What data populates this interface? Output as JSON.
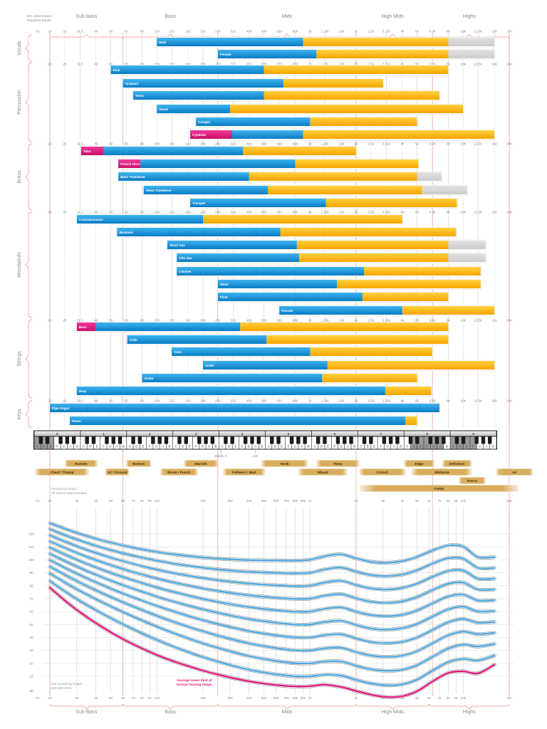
{
  "header": {
    "eq_note": [
      "ISO 1/3rd Octave",
      "Equalizer Bands"
    ],
    "bands": [
      {
        "label": "Sub Bass",
        "from": 20,
        "to": 60
      },
      {
        "label": "Bass",
        "from": 60,
        "to": 250
      },
      {
        "label": "Mids",
        "from": 250,
        "to": 2000
      },
      {
        "label": "High Mids",
        "from": 2000,
        "to": 6000
      },
      {
        "label": "Highs",
        "from": 6000,
        "to": 20000
      }
    ]
  },
  "eq_ticks": {
    "unit": "Hz",
    "labels": [
      "20",
      "25",
      "31.5",
      "40",
      "50",
      "63",
      "80",
      "100",
      "125",
      "160",
      "200",
      "250",
      "315",
      "400",
      "500",
      "630",
      "800",
      "1k",
      "1.25k",
      "1.6k",
      "2k",
      "2.5k",
      "3.15k",
      "4k",
      "5k",
      "6.3k",
      "8k",
      "10k",
      "12.5k",
      "16k",
      "20k"
    ],
    "hz": [
      20,
      25,
      31.5,
      40,
      50,
      63,
      80,
      100,
      125,
      160,
      200,
      250,
      315,
      400,
      500,
      630,
      800,
      1000,
      1250,
      1600,
      2000,
      2500,
      3150,
      4000,
      5000,
      6300,
      8000,
      10000,
      12500,
      16000,
      20000
    ]
  },
  "colors": {
    "fundamental": "#1a9be0",
    "harmonics": "#fbb416",
    "extended": "#d6d6d6",
    "low_extension": "#e0177a",
    "threshold": "#e0177a",
    "contour": "#4aa8e0",
    "band_line": "#f08a8a",
    "descriptor": "#d9ad5c"
  },
  "groups": [
    {
      "label": "Vocals",
      "instruments": [
        {
          "name": "Male",
          "start": 100,
          "split": 900,
          "end": 8000,
          "ext": 16000
        },
        {
          "name": "Female",
          "start": 250,
          "split": 1100,
          "end": 8000,
          "ext": 16000
        }
      ]
    },
    {
      "label": "Percussion",
      "instruments": [
        {
          "name": "Kick",
          "start": 50,
          "split": 500,
          "end": 8000
        },
        {
          "name": "Tympani",
          "start": 60,
          "split": 670,
          "end": 3000
        },
        {
          "name": "Toms",
          "start": 70,
          "split": 500,
          "end": 7000
        },
        {
          "name": "Snare",
          "start": 100,
          "split": 300,
          "end": 10000
        },
        {
          "name": "Congas",
          "start": 180,
          "split": 1000,
          "end": 5000
        },
        {
          "name": "Cymbals",
          "start": 165,
          "mag_end": 310,
          "split": 900,
          "end": 16000
        }
      ]
    },
    {
      "label": "Brass",
      "instruments": [
        {
          "name": "Tuba",
          "start": 32,
          "mag_end": 45,
          "split": 365,
          "end": 2000
        },
        {
          "name": "French Horn",
          "start": 56,
          "mag_end": 78,
          "split": 800,
          "end": 5100
        },
        {
          "name": "Bass Trombone",
          "start": 56,
          "split": 400,
          "end": 5000,
          "ext": 7200
        },
        {
          "name": "Tenor Trombone",
          "start": 82,
          "split": 530,
          "end": 5400,
          "ext": 10600
        },
        {
          "name": "Trumpet",
          "start": 165,
          "split": 1270,
          "end": 9100
        }
      ]
    },
    {
      "label": "Woodwinds",
      "instruments": [
        {
          "name": "Contrabassoon",
          "start": 30,
          "split": 200,
          "end": 4000
        },
        {
          "name": "Bassoon",
          "start": 55,
          "split": 640,
          "end": 9000
        },
        {
          "name": "Tenor Sax",
          "start": 117,
          "split": 820,
          "end": 8000,
          "ext": 14000
        },
        {
          "name": "Alto Sax",
          "start": 135,
          "split": 850,
          "end": 8000,
          "ext": 14000
        },
        {
          "name": "Clarinet",
          "start": 135,
          "split": 2250,
          "end": 13000
        },
        {
          "name": "Oboe",
          "start": 250,
          "split": 1500,
          "end": 13000
        },
        {
          "name": "Flute",
          "start": 250,
          "split": 2200,
          "end": 8000
        },
        {
          "name": "Piccolo",
          "start": 630,
          "split": 4000,
          "end": 16000
        }
      ]
    },
    {
      "label": "Strings",
      "instruments": [
        {
          "name": "Bass",
          "start": 30,
          "mag_end": 40,
          "split": 350,
          "end": 8000
        },
        {
          "name": "Cello",
          "start": 64,
          "split": 520,
          "end": 8000
        },
        {
          "name": "Viola",
          "start": 125,
          "split": 1000,
          "end": 6300
        },
        {
          "name": "Violin",
          "start": 200,
          "split": 1300,
          "end": 16000
        },
        {
          "name": "Guitar",
          "start": 80,
          "split": 1200,
          "end": 5000
        },
        {
          "name": "Harp",
          "start": 30,
          "split": 3100,
          "end": 6200
        }
      ]
    },
    {
      "label": "Keys",
      "instruments": [
        {
          "name": "Pipe Organ",
          "start": 20,
          "split": 7000,
          "end": 7000
        },
        {
          "name": "Piano",
          "start": 27,
          "split": 4200,
          "end": 5000
        }
      ]
    }
  ],
  "piano": {
    "octaves": [
      "0",
      "1",
      "2",
      "3",
      "4",
      "5",
      "6",
      "7",
      "8",
      "9"
    ],
    "notes": [
      "C",
      "D",
      "E",
      "F",
      "G",
      "A",
      "B"
    ],
    "middle_c": "Middle C",
    "a440": "440"
  },
  "descriptors": [
    {
      "label": "Rumble",
      "from": 25,
      "to": 41,
      "row": 0
    },
    {
      "label": "Chest / Thump",
      "from": 16,
      "to": 36,
      "row": 1
    },
    {
      "label": "AC / Ground",
      "from": 46,
      "to": 66,
      "row": 1
    },
    {
      "label": "Bottom",
      "from": 63,
      "to": 92,
      "row": 0
    },
    {
      "label": "Boom / Punch",
      "from": 105,
      "to": 185,
      "row": 1
    },
    {
      "label": "Warmth",
      "from": 150,
      "to": 250,
      "row": 0
    },
    {
      "label": "Fullness / Mud",
      "from": 270,
      "to": 510,
      "row": 1
    },
    {
      "label": "Honk",
      "from": 480,
      "to": 970,
      "row": 0
    },
    {
      "label": "Tinny",
      "from": 1100,
      "to": 2100,
      "row": 0
    },
    {
      "label": "Whack",
      "from": 840,
      "to": 1750,
      "row": 1
    },
    {
      "label": "Crunch",
      "from": 2100,
      "to": 4200,
      "row": 1
    },
    {
      "label": "Edge",
      "from": 4100,
      "to": 6500,
      "row": 0
    },
    {
      "label": "Definition",
      "from": 7300,
      "to": 11400,
      "row": 0
    },
    {
      "label": "Sibilance",
      "from": 4600,
      "to": 11400,
      "row": 1
    },
    {
      "label": "Air",
      "from": 16400,
      "to": 28600,
      "row": 1
    },
    {
      "label": "Pierce",
      "from": 9400,
      "to": 14000,
      "row": 2
    },
    {
      "label": "Treble",
      "from": 2100,
      "to": 23000,
      "row": 3
    }
  ],
  "freq_note": [
    "Frequency Graph",
    "All Values Approximated"
  ],
  "graph_ticks": {
    "unit": "Hz",
    "labels": [
      "20",
      "30",
      "40",
      "50",
      "60",
      "70",
      "80",
      "90",
      "100",
      "200",
      "300",
      "400",
      "500",
      "600",
      "700",
      "800",
      "900",
      "1k",
      "2k",
      "3k",
      "4k",
      "5k",
      "6k",
      "7k",
      "8k",
      "9k",
      "10k",
      "20k"
    ],
    "hz": [
      20,
      30,
      40,
      50,
      60,
      70,
      80,
      90,
      100,
      200,
      300,
      400,
      500,
      600,
      700,
      800,
      900,
      1000,
      2000,
      3000,
      4000,
      5000,
      6000,
      7000,
      8000,
      9000,
      10000,
      20000
    ]
  },
  "ear_graph": {
    "title": [
      "Ear Sensitivity Graph",
      "ISO 226:2003"
    ],
    "db_labels": [
      "120",
      "110",
      "100",
      "90",
      "80",
      "70",
      "60",
      "50",
      "40",
      "30",
      "20",
      "10"
    ],
    "db_values": [
      120,
      110,
      100,
      90,
      80,
      70,
      60,
      50,
      40,
      30,
      20,
      10
    ],
    "db_unit": "dB",
    "phon_levels": [
      10,
      20,
      30,
      40,
      50,
      60,
      70,
      80,
      90,
      100
    ],
    "threshold_note": [
      "Average lower limit of",
      "human hearing range."
    ]
  }
}
